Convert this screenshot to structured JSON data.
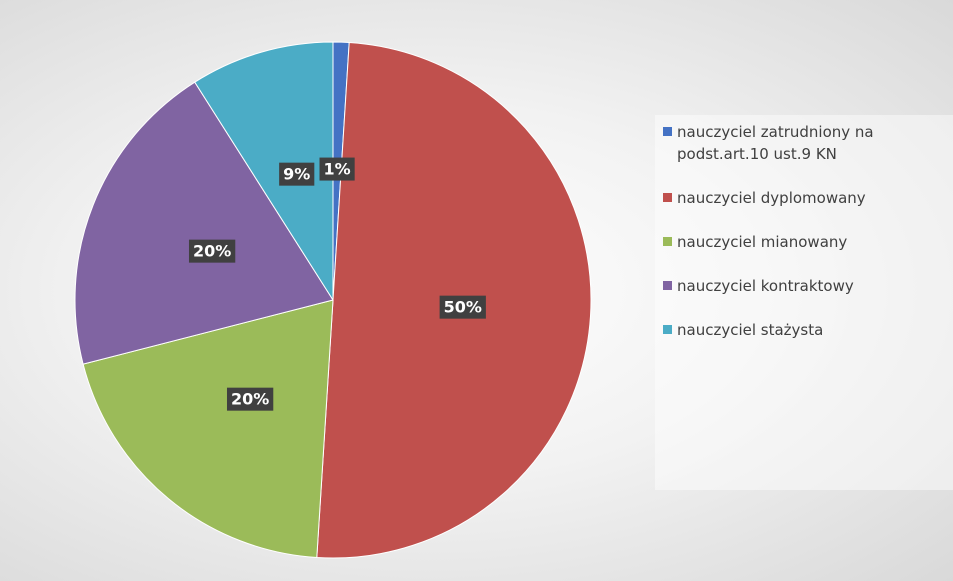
{
  "chart_data": {
    "type": "pie",
    "categories": [
      "nauczyciel zatrudniony na podst.art.10 ust.9 KN",
      "nauczyciel dyplomowany",
      "nauczyciel mianowany",
      "nauczyciel kontraktowy",
      "nauczyciel stażysta"
    ],
    "values": [
      1,
      50,
      20,
      20,
      9
    ],
    "value_labels": [
      "1%",
      "50%",
      "20%",
      "20%",
      "9%"
    ],
    "colors": [
      "#4472c4",
      "#c0504d",
      "#9bbb59",
      "#8064a2",
      "#4bacc6"
    ],
    "legend": "right"
  }
}
